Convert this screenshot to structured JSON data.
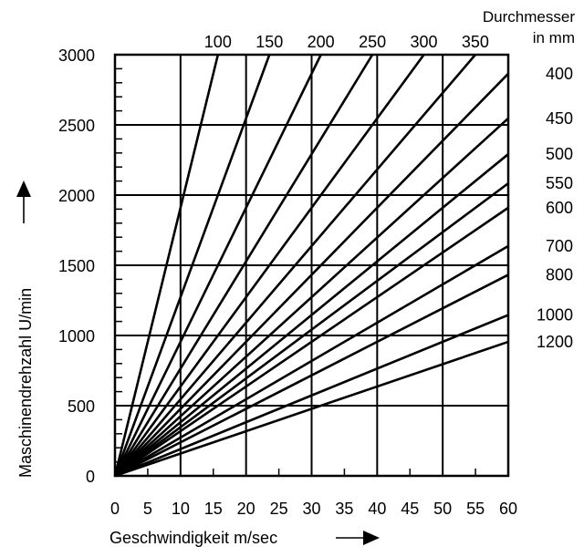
{
  "chart_data": {
    "type": "line",
    "xlabel": "Geschwindigkeit m/sec",
    "ylabel": "Maschinendrehzahl U/min",
    "xlim": [
      0,
      60
    ],
    "ylim": [
      0,
      3000
    ],
    "x_ticks": [
      "0",
      "5",
      "10",
      "15",
      "20",
      "25",
      "30",
      "35",
      "40",
      "45",
      "50",
      "55",
      "60"
    ],
    "y_ticks": [
      "0",
      "500",
      "1000",
      "1500",
      "2000",
      "2500",
      "3000"
    ],
    "grid": true,
    "legend_title_line1": "Durchmesser",
    "legend_title_line2": "in mm",
    "series": [
      {
        "name": "100",
        "diameter_mm": 100
      },
      {
        "name": "150",
        "diameter_mm": 150
      },
      {
        "name": "200",
        "diameter_mm": 200
      },
      {
        "name": "250",
        "diameter_mm": 250
      },
      {
        "name": "300",
        "diameter_mm": 300
      },
      {
        "name": "350",
        "diameter_mm": 350
      },
      {
        "name": "400",
        "diameter_mm": 400
      },
      {
        "name": "450",
        "diameter_mm": 450
      },
      {
        "name": "500",
        "diameter_mm": 500
      },
      {
        "name": "550",
        "diameter_mm": 550
      },
      {
        "name": "600",
        "diameter_mm": 600
      },
      {
        "name": "700",
        "diameter_mm": 700
      },
      {
        "name": "800",
        "diameter_mm": 800
      },
      {
        "name": "1000",
        "diameter_mm": 1000
      },
      {
        "name": "1200",
        "diameter_mm": 1200
      }
    ]
  }
}
